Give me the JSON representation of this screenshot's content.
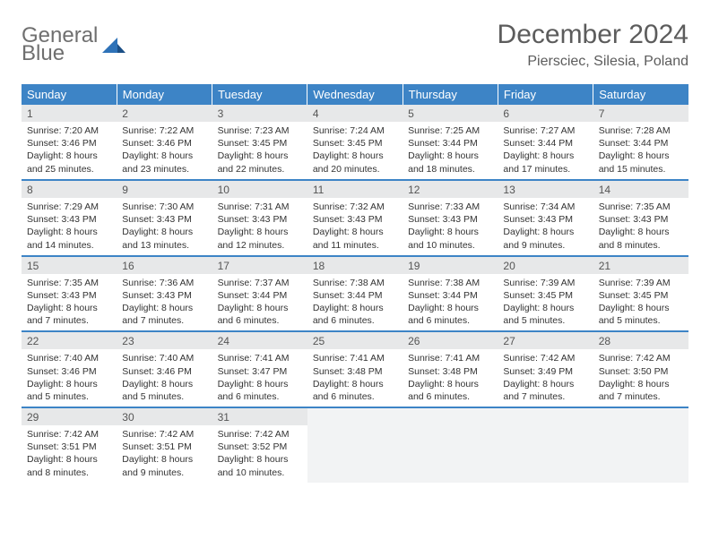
{
  "logo": {
    "word1": "General",
    "word2": "Blue"
  },
  "title": "December 2024",
  "location": "Piersciec, Silesia, Poland",
  "colors": {
    "header_bg": "#3d84c6",
    "header_text": "#ffffff",
    "daynum_bg": "#e7e8e9",
    "row_divider": "#3d84c6",
    "empty_bg": "#f2f3f4",
    "logo_gray": "#6f6f6f",
    "logo_blue": "#2e72b8"
  },
  "layout": {
    "cols": 7,
    "rows": 5,
    "col_width_pct": 14.285
  },
  "weekdays": [
    "Sunday",
    "Monday",
    "Tuesday",
    "Wednesday",
    "Thursday",
    "Friday",
    "Saturday"
  ],
  "days": [
    {
      "n": 1,
      "sunrise": "7:20 AM",
      "sunset": "3:46 PM",
      "daylight": "8 hours and 25 minutes."
    },
    {
      "n": 2,
      "sunrise": "7:22 AM",
      "sunset": "3:46 PM",
      "daylight": "8 hours and 23 minutes."
    },
    {
      "n": 3,
      "sunrise": "7:23 AM",
      "sunset": "3:45 PM",
      "daylight": "8 hours and 22 minutes."
    },
    {
      "n": 4,
      "sunrise": "7:24 AM",
      "sunset": "3:45 PM",
      "daylight": "8 hours and 20 minutes."
    },
    {
      "n": 5,
      "sunrise": "7:25 AM",
      "sunset": "3:44 PM",
      "daylight": "8 hours and 18 minutes."
    },
    {
      "n": 6,
      "sunrise": "7:27 AM",
      "sunset": "3:44 PM",
      "daylight": "8 hours and 17 minutes."
    },
    {
      "n": 7,
      "sunrise": "7:28 AM",
      "sunset": "3:44 PM",
      "daylight": "8 hours and 15 minutes."
    },
    {
      "n": 8,
      "sunrise": "7:29 AM",
      "sunset": "3:43 PM",
      "daylight": "8 hours and 14 minutes."
    },
    {
      "n": 9,
      "sunrise": "7:30 AM",
      "sunset": "3:43 PM",
      "daylight": "8 hours and 13 minutes."
    },
    {
      "n": 10,
      "sunrise": "7:31 AM",
      "sunset": "3:43 PM",
      "daylight": "8 hours and 12 minutes."
    },
    {
      "n": 11,
      "sunrise": "7:32 AM",
      "sunset": "3:43 PM",
      "daylight": "8 hours and 11 minutes."
    },
    {
      "n": 12,
      "sunrise": "7:33 AM",
      "sunset": "3:43 PM",
      "daylight": "8 hours and 10 minutes."
    },
    {
      "n": 13,
      "sunrise": "7:34 AM",
      "sunset": "3:43 PM",
      "daylight": "8 hours and 9 minutes."
    },
    {
      "n": 14,
      "sunrise": "7:35 AM",
      "sunset": "3:43 PM",
      "daylight": "8 hours and 8 minutes."
    },
    {
      "n": 15,
      "sunrise": "7:35 AM",
      "sunset": "3:43 PM",
      "daylight": "8 hours and 7 minutes."
    },
    {
      "n": 16,
      "sunrise": "7:36 AM",
      "sunset": "3:43 PM",
      "daylight": "8 hours and 7 minutes."
    },
    {
      "n": 17,
      "sunrise": "7:37 AM",
      "sunset": "3:44 PM",
      "daylight": "8 hours and 6 minutes."
    },
    {
      "n": 18,
      "sunrise": "7:38 AM",
      "sunset": "3:44 PM",
      "daylight": "8 hours and 6 minutes."
    },
    {
      "n": 19,
      "sunrise": "7:38 AM",
      "sunset": "3:44 PM",
      "daylight": "8 hours and 6 minutes."
    },
    {
      "n": 20,
      "sunrise": "7:39 AM",
      "sunset": "3:45 PM",
      "daylight": "8 hours and 5 minutes."
    },
    {
      "n": 21,
      "sunrise": "7:39 AM",
      "sunset": "3:45 PM",
      "daylight": "8 hours and 5 minutes."
    },
    {
      "n": 22,
      "sunrise": "7:40 AM",
      "sunset": "3:46 PM",
      "daylight": "8 hours and 5 minutes."
    },
    {
      "n": 23,
      "sunrise": "7:40 AM",
      "sunset": "3:46 PM",
      "daylight": "8 hours and 5 minutes."
    },
    {
      "n": 24,
      "sunrise": "7:41 AM",
      "sunset": "3:47 PM",
      "daylight": "8 hours and 6 minutes."
    },
    {
      "n": 25,
      "sunrise": "7:41 AM",
      "sunset": "3:48 PM",
      "daylight": "8 hours and 6 minutes."
    },
    {
      "n": 26,
      "sunrise": "7:41 AM",
      "sunset": "3:48 PM",
      "daylight": "8 hours and 6 minutes."
    },
    {
      "n": 27,
      "sunrise": "7:42 AM",
      "sunset": "3:49 PM",
      "daylight": "8 hours and 7 minutes."
    },
    {
      "n": 28,
      "sunrise": "7:42 AM",
      "sunset": "3:50 PM",
      "daylight": "8 hours and 7 minutes."
    },
    {
      "n": 29,
      "sunrise": "7:42 AM",
      "sunset": "3:51 PM",
      "daylight": "8 hours and 8 minutes."
    },
    {
      "n": 30,
      "sunrise": "7:42 AM",
      "sunset": "3:51 PM",
      "daylight": "8 hours and 9 minutes."
    },
    {
      "n": 31,
      "sunrise": "7:42 AM",
      "sunset": "3:52 PM",
      "daylight": "8 hours and 10 minutes."
    }
  ],
  "labels": {
    "sunrise": "Sunrise:",
    "sunset": "Sunset:",
    "daylight": "Daylight:"
  }
}
